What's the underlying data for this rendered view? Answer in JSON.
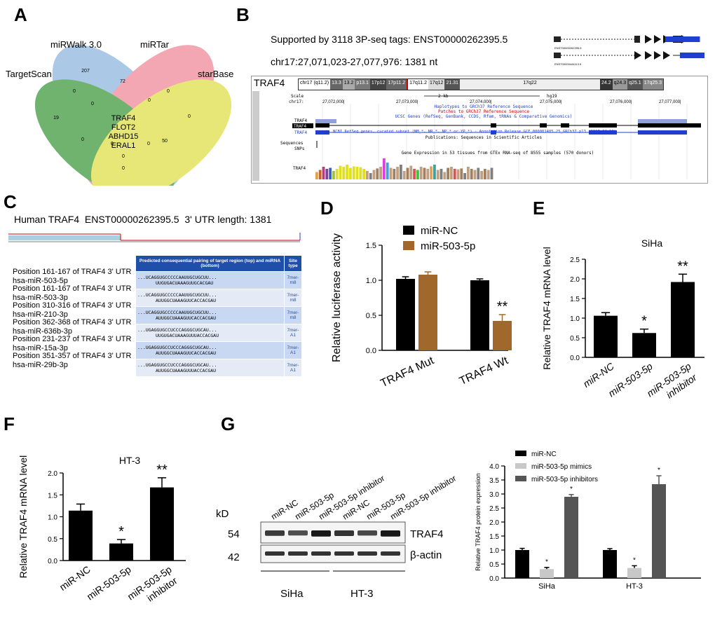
{
  "panels": {
    "A": {
      "letter": "A",
      "sets": [
        {
          "name": "miRWalk 3.0",
          "color": "#8fb8e0"
        },
        {
          "name": "miRTar",
          "color": "#f08a9a"
        },
        {
          "name": "TargetScan",
          "color": "#3f9a3f"
        },
        {
          "name": "starBase",
          "color": "#e0e04a"
        }
      ],
      "region_values": [
        "207",
        "72",
        "19",
        "0",
        "0",
        "0",
        "0",
        "0",
        "0",
        "0",
        "0",
        "50",
        "0",
        "0"
      ],
      "center_genes": [
        "TRAF4",
        "FLOT2",
        "ABHD15",
        "ERAL1"
      ]
    },
    "B": {
      "letter": "B",
      "header1": "Supported by 3118 3P-seq tags:",
      "transcript": "ENST00000262395.5",
      "locus": "chr17:27,071,023-27,077,976:",
      "length": "1381 nt",
      "gene_label": "TRAF4",
      "iso1": "ENST00000262395.5",
      "iso2": "ENST00000444113.5",
      "ideogram_label": "chr17 (q11.2)",
      "bands": [
        "13.3",
        "13.2",
        "p13.1",
        "17p12",
        "17p11.2",
        "17q11.2",
        "17q12",
        "21.31",
        "17q22",
        "24.2",
        "q24.3",
        "q25.1",
        "17q25.3"
      ],
      "scale_label": "Scale",
      "chr_label": "chr17:",
      "scale_value": "2 kb",
      "assembly": "hg19",
      "coords": [
        "27,072,000|",
        "27,073,000|",
        "27,074,000|",
        "27,075,000|",
        "27,076,000|",
        "27,077,000|"
      ],
      "track_texts": [
        "Haplotypes to GRCh37 Reference Sequence",
        "Patches to GRCh37 Reference Sequence",
        "UCSC Genes (RefSeq, GenBank, CCDS, Rfam, tRNAs & Comparative Genomics)",
        "NCBI RefSeq genes, curated subset (NM_*, NR_*, NP_* or YP_*) - Annotation Release GCF_000001405.25_GRCh37.p13 (2017-04-19)",
        "Publications: Sequences in Scientific Articles",
        "Gene Expression in 53 tissues from GTEx RNA-seq of 8555 samples (570 donors)"
      ],
      "side_labels": [
        "TRAF4",
        "TRAF4",
        "TRAF4",
        "Sequences",
        "SNPs",
        "TRAF4"
      ],
      "gtex_values": [
        0.35,
        0.45,
        0.6,
        0.5,
        0.55,
        0.4,
        0.5,
        0.65,
        0.6,
        0.7,
        0.55,
        0.62,
        0.6,
        0.58,
        0.5,
        0.4,
        0.3,
        0.45,
        0.52,
        0.6,
        1.0,
        0.8,
        0.55,
        0.5,
        0.6,
        0.7,
        0.4,
        0.55,
        0.65,
        0.5,
        0.45,
        0.6,
        0.55,
        0.5,
        0.62,
        0.7,
        0.45,
        0.5,
        0.35,
        0.55,
        0.6,
        0.5,
        0.48,
        0.52,
        0.3,
        0.6,
        0.5,
        0.45,
        0.55,
        0.4,
        0.5,
        0.45,
        0.55
      ],
      "gtex_colors": [
        "#e8a040",
        "#d06020",
        "#b04080",
        "#8040a0",
        "#4060c0",
        "#a0c040",
        "#e0e020",
        "#e0e020",
        "#e0e020",
        "#e0e020",
        "#e0e020",
        "#e0e020",
        "#e0e020",
        "#e0e020",
        "#e0e020",
        "#c0a080",
        "#808080",
        "#c0a080",
        "#a08060",
        "#c0a080",
        "#e040e0",
        "#40a0e0",
        "#c0a080",
        "#a08060",
        "#c0a080",
        "#808080",
        "#c0a080",
        "#a08060",
        "#c0a080",
        "#e05050",
        "#40c040",
        "#c0a080",
        "#a08060",
        "#c0a080",
        "#e0a060",
        "#40a0a0",
        "#c0a080",
        "#808080",
        "#c0a080",
        "#a08060",
        "#c0a080",
        "#e05050",
        "#c0a080",
        "#a08060",
        "#808080",
        "#c0a080",
        "#a08060",
        "#c0a080",
        "#808080",
        "#c0a080",
        "#a08060",
        "#c0a080",
        "#808080"
      ]
    },
    "C": {
      "letter": "C",
      "title_species": "Human TRAF4",
      "title_transcript": "ENST00000262395.5",
      "title_utr": "3' UTR length: 1381",
      "header_pairing": "Predicted consequential pairing of target region (top) and miRNA (bottom)",
      "header_site": "Site type",
      "rows": [
        {
          "position": "Position 161-167 of TRAF4 3' UTR",
          "mirna": "hsa-miR-503-5p",
          "top": "...UCAGGUGCCCCCAAUUGCUGCUU...",
          "bottom": "UUGUGACUAAAGUUGCACGAU",
          "site": "7mer-m8"
        },
        {
          "position": "Position 161-167 of TRAF4 3' UTR",
          "mirna": "hsa-miR-503-3p",
          "top": "...UCAGGUGCCCCCAAUUGCUGCUU...",
          "bottom": "AUUGGCUAAAGUUCACCACGAU",
          "site": "7mer-m8"
        },
        {
          "position": "Position 310-316 of TRAF4 3' UTR",
          "mirna": "hsa-miR-210-3p",
          "top": "...UCAGGUGCCCCCAAUUGCUGCUU...",
          "bottom": "AUUGGCUAAAGUUCACCACGAU",
          "site": "7mer-m8"
        },
        {
          "position": "Position 362-368 of TRAF4 3' UTR",
          "mirna": "hsa-miR-636b-3p",
          "top": "...UGAGGUGCCUCCCAGGGCUGCAU...",
          "bottom": "UUGUGACUAAAGUUUACCACGAU",
          "site": "7mer-A1"
        },
        {
          "position": "Position 231-237 of TRAF4 3' UTR",
          "mirna": "hsa-miR-15a-3p",
          "top": "...UGAGGUGCCUCCCAGGGCUGCAU...",
          "bottom": "AUUGGCUAAAGUUCACCACGAU",
          "site": "7mer-A1"
        },
        {
          "position": "Position 351-357 of TRAF4 3' UTR",
          "mirna": "hsa-miR-29b-3p",
          "top": "...UGAGGUGCCUCCCAGGGCUGCAU...",
          "bottom": "AUUGGCUAAAGUUUACCACGAU",
          "site": "7mer-A1"
        }
      ]
    },
    "D": {
      "letter": "D"
    },
    "E": {
      "letter": "E"
    },
    "F": {
      "letter": "F"
    },
    "G": {
      "letter": "G",
      "kd_label": "kD",
      "kd_values": [
        "54",
        "42"
      ],
      "blot_labels": [
        "TRAF4",
        "β-actin"
      ],
      "lane_labels": [
        "miR-NC",
        "miR-503-5p",
        "miR-503-5p inhibitor",
        "miR-NC",
        "miR-503-5p",
        "miR-503-5p inhibitor"
      ],
      "group_labels": [
        "SiHa",
        "HT-3"
      ]
    }
  },
  "chart_data": [
    {
      "type": "bar",
      "panel": "D",
      "categories": [
        "TRAF4 Mut",
        "TRAF4 Wt"
      ],
      "series": [
        {
          "name": "miR-NC",
          "values": [
            1.02,
            1.0
          ],
          "errors": [
            0.03,
            0.02
          ],
          "color": "#000000"
        },
        {
          "name": "miR-503-5p",
          "values": [
            1.08,
            0.42
          ],
          "errors": [
            0.04,
            0.09
          ],
          "color": "#a0682a"
        }
      ],
      "ylabel": "Relative luciferase activity",
      "ylim": [
        0,
        1.5
      ],
      "yticks": [
        "0.0",
        "0.5",
        "1.0",
        "1.5"
      ],
      "annotations": [
        {
          "category": "TRAF4 Wt",
          "series": "miR-503-5p",
          "text": "**"
        }
      ],
      "legend": "top-left"
    },
    {
      "type": "bar",
      "panel": "E",
      "title": "SiHa",
      "categories": [
        "miR-NC",
        "miR-503-5p",
        "miR-503-5p inhibitor"
      ],
      "values": [
        1.06,
        0.62,
        1.92
      ],
      "errors": [
        0.08,
        0.1,
        0.2
      ],
      "sig": [
        "",
        "*",
        "**"
      ],
      "ylabel": "Relative TRAF4 mRNA level",
      "ylim": [
        0,
        2.5
      ],
      "yticks": [
        "0.0",
        "0.5",
        "1.0",
        "1.5",
        "2.0",
        "2.5"
      ]
    },
    {
      "type": "bar",
      "panel": "F",
      "title": "HT-3",
      "categories": [
        "miR-NC",
        "miR-503-5p",
        "miR-503-5p inhibitor"
      ],
      "values": [
        1.14,
        0.39,
        1.67
      ],
      "errors": [
        0.15,
        0.09,
        0.22
      ],
      "sig": [
        "",
        "*",
        "**"
      ],
      "ylabel": "Relative TRAF4 mRNA level",
      "ylim": [
        0,
        2.0
      ],
      "yticks": [
        "0.0",
        "0.5",
        "1.0",
        "1.5",
        "2.0"
      ]
    },
    {
      "type": "bar",
      "panel": "G",
      "categories": [
        "SiHa",
        "HT-3"
      ],
      "series": [
        {
          "name": "miR-NC",
          "values": [
            1.0,
            1.0
          ],
          "errors": [
            0.06,
            0.05
          ],
          "color": "#000000"
        },
        {
          "name": "miR-503-5p mimics",
          "values": [
            0.32,
            0.36
          ],
          "errors": [
            0.06,
            0.08
          ],
          "color": "#c8c8c8"
        },
        {
          "name": "miR-503-5p inhibitors",
          "values": [
            2.9,
            3.35
          ],
          "errors": [
            0.08,
            0.3
          ],
          "color": "#555555"
        }
      ],
      "sig": [
        [
          "",
          "*",
          "*"
        ],
        [
          "",
          "*",
          "*"
        ]
      ],
      "ylabel": "Relative TRAF4 protein expression",
      "ylim": [
        0,
        4.0
      ],
      "yticks": [
        "0.0",
        "0.5",
        "1.0",
        "1.5",
        "2.0",
        "2.5",
        "3.0",
        "3.5",
        "4.0"
      ],
      "legend": "top-left"
    }
  ]
}
